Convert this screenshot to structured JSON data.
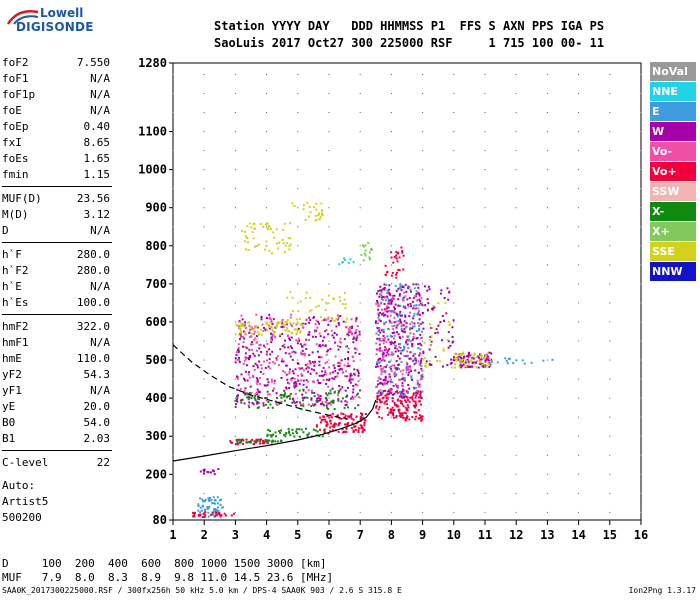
{
  "logo": {
    "line1": "Lowell",
    "line2": "DIGISONDE"
  },
  "header": {
    "line1": "Station YYYY DAY   DDD HHMMSS P1  FFS S AXN PPS IGA PS",
    "line2": "SaoLuis 2017 Oct27 300 225000 RSF     1 715 100 00- 11"
  },
  "params": {
    "group1": [
      {
        "k": "foF2",
        "v": "7.550"
      },
      {
        "k": "foF1",
        "v": "N/A"
      },
      {
        "k": "foF1p",
        "v": "N/A"
      },
      {
        "k": "foE",
        "v": "N/A"
      },
      {
        "k": "foEp",
        "v": "0.40"
      },
      {
        "k": "fxI",
        "v": "8.65"
      },
      {
        "k": "foEs",
        "v": "1.65"
      },
      {
        "k": "fmin",
        "v": "1.15"
      }
    ],
    "group2": [
      {
        "k": "MUF(D)",
        "v": "23.56"
      },
      {
        "k": "M(D)",
        "v": "3.12"
      },
      {
        "k": "D",
        "v": "N/A"
      }
    ],
    "group3": [
      {
        "k": "h`F",
        "v": "280.0"
      },
      {
        "k": "h`F2",
        "v": "280.0"
      },
      {
        "k": "h`E",
        "v": "N/A"
      },
      {
        "k": "h`Es",
        "v": "100.0"
      }
    ],
    "group4": [
      {
        "k": "hmF2",
        "v": "322.0"
      },
      {
        "k": "hmF1",
        "v": "N/A"
      },
      {
        "k": "hmE",
        "v": "110.0"
      },
      {
        "k": "yF2",
        "v": "54.3"
      },
      {
        "k": "yF1",
        "v": "N/A"
      },
      {
        "k": "yE",
        "v": "20.0"
      },
      {
        "k": "B0",
        "v": "54.0"
      },
      {
        "k": "B1",
        "v": "2.03"
      }
    ],
    "group5": [
      {
        "k": "C-level",
        "v": "22"
      }
    ]
  },
  "auto": {
    "line1": "Auto:",
    "line2": "Artist5",
    "line3": "500200"
  },
  "legend": [
    {
      "label": "NoVal",
      "color": "#999999"
    },
    {
      "label": "NNE",
      "color": "#22d3e8"
    },
    {
      "label": "E",
      "color": "#3d9de0"
    },
    {
      "label": "W",
      "color": "#a800a8"
    },
    {
      "label": "Vo-",
      "color": "#f04fa8"
    },
    {
      "label": "Vo+",
      "color": "#f0003c"
    },
    {
      "label": "SSW",
      "color": "#f0b4b4"
    },
    {
      "label": "X-",
      "color": "#118a11"
    },
    {
      "label": "X+",
      "color": "#82c85a"
    },
    {
      "label": "SSE",
      "color": "#d2d21e"
    },
    {
      "label": "NNW",
      "color": "#1212c8"
    }
  ],
  "chart_data": {
    "type": "scatter",
    "xlim": [
      1,
      16
    ],
    "ylim": [
      80,
      1280
    ],
    "x_ticks": [
      "1",
      "2",
      "3",
      "4",
      "5",
      "6",
      "7",
      "8",
      "9",
      "10",
      "11",
      "12",
      "13",
      "14",
      "15",
      "16"
    ],
    "y_ticks": [
      "80",
      "200",
      "300",
      "400",
      "500",
      "600",
      "700",
      "800",
      "900",
      "1000",
      "1100",
      "1280"
    ],
    "trace_curve": [
      [
        1.0,
        235
      ],
      [
        2.0,
        248
      ],
      [
        3.0,
        262
      ],
      [
        4.0,
        275
      ],
      [
        5.0,
        290
      ],
      [
        5.8,
        305
      ],
      [
        6.4,
        320
      ],
      [
        6.9,
        335
      ],
      [
        7.2,
        350
      ],
      [
        7.4,
        372
      ],
      [
        7.5,
        395
      ]
    ],
    "dashed_curve": [
      [
        1.0,
        540
      ],
      [
        1.6,
        495
      ],
      [
        2.2,
        460
      ],
      [
        2.8,
        430
      ],
      [
        3.5,
        408
      ],
      [
        4.3,
        390
      ],
      [
        5.2,
        370
      ],
      [
        6.0,
        355
      ],
      [
        6.6,
        345
      ]
    ],
    "dot_clusters": [
      {
        "x": [
          1.8,
          2.6
        ],
        "y": [
          88,
          140
        ],
        "color": "#3d9de0",
        "n": 60
      },
      {
        "x": [
          1.5,
          3.0
        ],
        "y": [
          88,
          100
        ],
        "color": "#f0003c",
        "n": 30
      },
      {
        "x": [
          1.8,
          2.5
        ],
        "y": [
          200,
          215
        ],
        "color": "#a800a8",
        "n": 14
      },
      {
        "x": [
          2.8,
          4.2
        ],
        "y": [
          278,
          292
        ],
        "color": "#f0003c",
        "n": 40
      },
      {
        "x": [
          3.0,
          4.5
        ],
        "y": [
          283,
          290
        ],
        "color": "#118a11",
        "n": 25
      },
      {
        "x": [
          4.0,
          6.0
        ],
        "y": [
          298,
          320
        ],
        "color": "#118a11",
        "n": 45
      },
      {
        "x": [
          5.6,
          7.2
        ],
        "y": [
          310,
          360
        ],
        "color": "#f0003c",
        "n": 120
      },
      {
        "x": [
          3.0,
          7.0
        ],
        "y": [
          380,
          620
        ],
        "color": "#a800a8",
        "n": 420
      },
      {
        "x": [
          3.0,
          7.0
        ],
        "y": [
          380,
          620
        ],
        "color": "#f04fa8",
        "n": 220
      },
      {
        "x": [
          3.0,
          7.0
        ],
        "y": [
          370,
          420
        ],
        "color": "#118a11",
        "n": 80
      },
      {
        "x": [
          3.0,
          5.2
        ],
        "y": [
          565,
          600
        ],
        "color": "#d2d21e",
        "n": 70
      },
      {
        "x": [
          4.5,
          6.6
        ],
        "y": [
          600,
          680
        ],
        "color": "#d2d21e",
        "n": 40
      },
      {
        "x": [
          3.2,
          4.8
        ],
        "y": [
          780,
          860
        ],
        "color": "#d2d21e",
        "n": 55
      },
      {
        "x": [
          4.8,
          5.8
        ],
        "y": [
          860,
          920
        ],
        "color": "#d2d21e",
        "n": 25
      },
      {
        "x": [
          7.5,
          9.0
        ],
        "y": [
          340,
          420
        ],
        "color": "#f0003c",
        "n": 160
      },
      {
        "x": [
          7.5,
          9.0
        ],
        "y": [
          400,
          700
        ],
        "color": "#a800a8",
        "n": 320
      },
      {
        "x": [
          7.5,
          9.0
        ],
        "y": [
          400,
          700
        ],
        "color": "#3d9de0",
        "n": 120
      },
      {
        "x": [
          7.5,
          9.0
        ],
        "y": [
          420,
          680
        ],
        "color": "#f04fa8",
        "n": 120
      },
      {
        "x": [
          7.8,
          8.4
        ],
        "y": [
          710,
          800
        ],
        "color": "#f0003c",
        "n": 30
      },
      {
        "x": [
          9.0,
          10.0
        ],
        "y": [
          480,
          700
        ],
        "color": "#a800a8",
        "n": 60
      },
      {
        "x": [
          9.0,
          10.0
        ],
        "y": [
          460,
          650
        ],
        "color": "#d2d21e",
        "n": 25
      },
      {
        "x": [
          10.0,
          11.2
        ],
        "y": [
          480,
          520
        ],
        "color": "#a800a8",
        "n": 90
      },
      {
        "x": [
          10.0,
          11.2
        ],
        "y": [
          480,
          520
        ],
        "color": "#d2d21e",
        "n": 50
      },
      {
        "x": [
          11.0,
          13.3
        ],
        "y": [
          490,
          505
        ],
        "color": "#3d9de0",
        "n": 15
      },
      {
        "x": [
          7.0,
          7.4
        ],
        "y": [
          760,
          810
        ],
        "color": "#82c85a",
        "n": 15
      },
      {
        "x": [
          6.3,
          6.8
        ],
        "y": [
          740,
          770
        ],
        "color": "#22d3e8",
        "n": 8
      }
    ]
  },
  "muf_table": {
    "line1": "D     100  200  400  600  800 1000 1500 3000 [km]",
    "line2": "MUF   7.9  8.0  8.3  8.9  9.8 11.0 14.5 23.6 [MHz]"
  },
  "footer": {
    "left": "SAA0K_2017300225000.RSF / 300fx256h 50 kHz 5.0 km / DPS-4 SAA0K 903 / 2.6 S 315.8 E",
    "right": "Ion2Png 1.3.17"
  }
}
